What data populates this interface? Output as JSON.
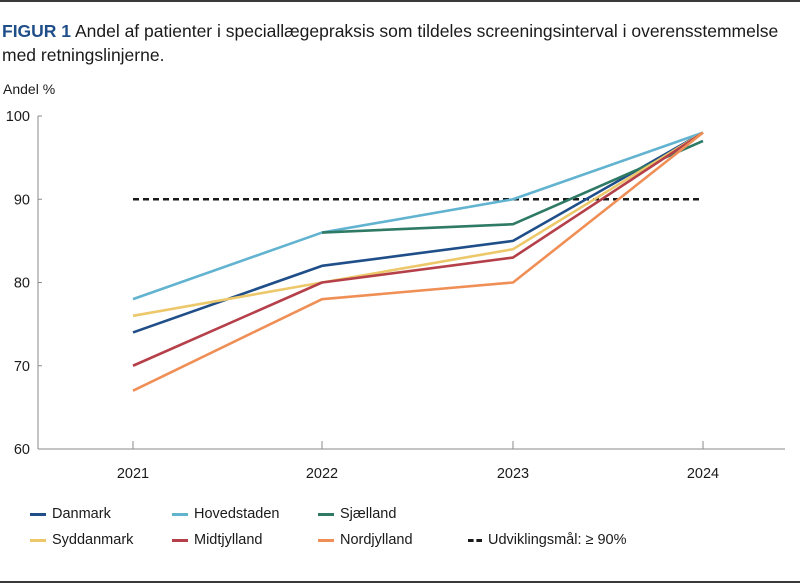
{
  "figure": {
    "label": "FIGUR 1",
    "caption": "Andel af patienter i speciallægepraksis som tildeles screeningsinterval i overensstemmelse med retningslinjerne."
  },
  "chart_data": {
    "type": "line",
    "title": "Andel af patienter i speciallægepraksis som tildeles screeningsinterval i overensstemmelse med retningslinjerne.",
    "xlabel": "",
    "ylabel": "Andel %",
    "x": [
      "2021",
      "2022",
      "2023",
      "2024"
    ],
    "ylim": [
      60,
      100
    ],
    "yticks": [
      60,
      70,
      80,
      90,
      100
    ],
    "grid": false,
    "legend_position": "bottom",
    "series": [
      {
        "name": "Danmark",
        "color": "#1f4e89",
        "values": [
          74,
          82,
          85,
          98
        ]
      },
      {
        "name": "Hovedstaden",
        "color": "#62b3d0",
        "values": [
          78,
          86,
          90,
          98
        ]
      },
      {
        "name": "Sjælland",
        "color": "#2e7a65",
        "values": [
          null,
          86,
          87,
          97
        ]
      },
      {
        "name": "Syddanmark",
        "color": "#ecc86a",
        "values": [
          76,
          80,
          84,
          98
        ]
      },
      {
        "name": "Midtjylland",
        "color": "#b5404a",
        "values": [
          70,
          80,
          83,
          98
        ]
      },
      {
        "name": "Nordjylland",
        "color": "#ef8f56",
        "values": [
          67,
          78,
          80,
          98
        ]
      }
    ],
    "reference_line": {
      "name": "Udviklingsmål: ≥ 90%",
      "value": 90,
      "color": "#1a1a1a",
      "style": "dashed"
    }
  },
  "legend": {
    "rows": [
      [
        {
          "label": "Danmark",
          "color": "#1f4e89",
          "style": "solid"
        },
        {
          "label": "Hovedstaden",
          "color": "#62b3d0",
          "style": "solid"
        },
        {
          "label": "Sjælland",
          "color": "#2e7a65",
          "style": "solid"
        }
      ],
      [
        {
          "label": "Syddanmark",
          "color": "#ecc86a",
          "style": "solid"
        },
        {
          "label": "Midtjylland",
          "color": "#b5404a",
          "style": "solid"
        },
        {
          "label": "Nordjylland",
          "color": "#ef8f56",
          "style": "solid"
        },
        {
          "label": "Udviklingsmål: ≥ 90%",
          "color": "#1a1a1a",
          "style": "dashed"
        }
      ]
    ]
  }
}
